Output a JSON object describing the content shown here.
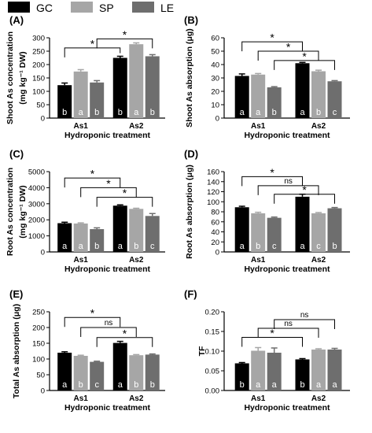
{
  "legend": {
    "items": [
      {
        "label": "GC",
        "color": "#000000"
      },
      {
        "label": "SP",
        "color": "#a6a6a6"
      },
      {
        "label": "LE",
        "color": "#6e6e6e"
      }
    ],
    "placement": "top"
  },
  "chart_data": [
    {
      "type": "bar",
      "panel_label": "(A)",
      "ylabel_lines": [
        "Shoot As concentration",
        "(mg kg⁻¹ DW)"
      ],
      "xlabel": "Hydroponic treatment",
      "categories": [
        "As1",
        "As2"
      ],
      "yticks": [
        0,
        50,
        100,
        150,
        200,
        250,
        300
      ],
      "tick_labels": [
        "0",
        "50",
        "100",
        "150",
        "200",
        "250",
        "300"
      ],
      "ylim": [
        0,
        300
      ],
      "series": [
        {
          "name": "GC",
          "values": [
            123,
            225
          ],
          "errors": [
            8,
            6
          ],
          "letters": [
            "b",
            "b"
          ]
        },
        {
          "name": "SP",
          "values": [
            174,
            276
          ],
          "errors": [
            7,
            5
          ],
          "letters": [
            "a",
            "a"
          ]
        },
        {
          "name": "LE",
          "values": [
            133,
            231
          ],
          "errors": [
            7,
            6
          ],
          "letters": [
            "b",
            "b"
          ]
        }
      ],
      "comparisons": [
        {
          "from_series": 0,
          "y": 262,
          "label": "*"
        },
        {
          "from_series": 2,
          "y": 296,
          "label": "*"
        }
      ]
    },
    {
      "type": "bar",
      "panel_label": "(B)",
      "ylabel_lines": [
        "Shoot As absorption (μg)"
      ],
      "xlabel": "Hydroponic treatment",
      "categories": [
        "As1",
        "As2"
      ],
      "yticks": [
        0,
        10,
        20,
        30,
        40,
        50,
        60
      ],
      "tick_labels": [
        "0",
        "10",
        "20",
        "30",
        "40",
        "50",
        "60"
      ],
      "ylim": [
        0,
        60
      ],
      "series": [
        {
          "name": "GC",
          "values": [
            31.5,
            41
          ],
          "errors": [
            1.5,
            0.6
          ],
          "letters": [
            "a",
            "a"
          ]
        },
        {
          "name": "SP",
          "values": [
            32.5,
            35
          ],
          "errors": [
            0.8,
            0.8
          ],
          "letters": [
            "a",
            "b"
          ]
        },
        {
          "name": "LE",
          "values": [
            23,
            27.5
          ],
          "errors": [
            0.5,
            0.5
          ],
          "letters": [
            "b",
            "c"
          ]
        }
      ],
      "comparisons": [
        {
          "from_series": 0,
          "y": 57,
          "label": "*"
        },
        {
          "from_series": 1,
          "y": 50,
          "label": "*"
        },
        {
          "from_series": 2,
          "y": 43,
          "label": "*"
        }
      ]
    },
    {
      "type": "bar",
      "panel_label": "(C)",
      "ylabel_lines": [
        "Root As concentration",
        "(mg kg⁻¹ DW)"
      ],
      "xlabel": "Hydroponic treatment",
      "categories": [
        "As1",
        "As2"
      ],
      "yticks": [
        0,
        1000,
        2000,
        3000,
        4000,
        5000
      ],
      "tick_labels": [
        "0",
        "1000",
        "2000",
        "3000",
        "4000",
        "5000"
      ],
      "ylim": [
        0,
        5000
      ],
      "series": [
        {
          "name": "GC",
          "values": [
            1790,
            2880
          ],
          "errors": [
            60,
            50
          ],
          "letters": [
            "a",
            "a"
          ]
        },
        {
          "name": "SP",
          "values": [
            1770,
            2680
          ],
          "errors": [
            40,
            40
          ],
          "letters": [
            "a",
            "b"
          ]
        },
        {
          "name": "LE",
          "values": [
            1420,
            2240
          ],
          "errors": [
            80,
            150
          ],
          "letters": [
            "b",
            "c"
          ]
        }
      ],
      "comparisons": [
        {
          "from_series": 0,
          "y": 4600,
          "label": "*"
        },
        {
          "from_series": 1,
          "y": 4000,
          "label": "*"
        },
        {
          "from_series": 2,
          "y": 3400,
          "label": "*"
        }
      ]
    },
    {
      "type": "bar",
      "panel_label": "(D)",
      "ylabel_lines": [
        "Root As absorption (μg)"
      ],
      "xlabel": "Hydroponic treatment",
      "categories": [
        "As1",
        "As2"
      ],
      "yticks": [
        0,
        20,
        40,
        60,
        80,
        100,
        120,
        140,
        160
      ],
      "tick_labels": [
        "0",
        "20",
        "40",
        "60",
        "80",
        "100",
        "120",
        "140",
        "160"
      ],
      "ylim": [
        0,
        160
      ],
      "series": [
        {
          "name": "GC",
          "values": [
            89,
            110
          ],
          "errors": [
            2,
            5
          ],
          "letters": [
            "a",
            "a"
          ]
        },
        {
          "name": "SP",
          "values": [
            77,
            77
          ],
          "errors": [
            2,
            1.5
          ],
          "letters": [
            "b",
            "c"
          ]
        },
        {
          "name": "LE",
          "values": [
            68,
            87
          ],
          "errors": [
            1.5,
            1.5
          ],
          "letters": [
            "c",
            "b"
          ]
        }
      ],
      "comparisons": [
        {
          "from_series": 0,
          "y": 150,
          "label": "*"
        },
        {
          "from_series": 1,
          "y": 132,
          "label": "ns"
        },
        {
          "from_series": 2,
          "y": 115,
          "label": "*"
        }
      ]
    },
    {
      "type": "bar",
      "panel_label": "(E)",
      "ylabel_lines": [
        "Total As absorption (μg)"
      ],
      "xlabel": "Hydroponic treatment",
      "categories": [
        "As1",
        "As2"
      ],
      "yticks": [
        0,
        50,
        100,
        150,
        200,
        250
      ],
      "tick_labels": [
        "0",
        "50",
        "100",
        "150",
        "200",
        "250"
      ],
      "ylim": [
        0,
        250
      ],
      "series": [
        {
          "name": "GC",
          "values": [
            120,
            151
          ],
          "errors": [
            3,
            5
          ],
          "letters": [
            "a",
            "a"
          ]
        },
        {
          "name": "SP",
          "values": [
            110,
            112
          ],
          "errors": [
            2,
            2
          ],
          "letters": [
            "b",
            "b"
          ]
        },
        {
          "name": "LE",
          "values": [
            91,
            114
          ],
          "errors": [
            2,
            2
          ],
          "letters": [
            "c",
            "b"
          ]
        }
      ],
      "comparisons": [
        {
          "from_series": 0,
          "y": 232,
          "label": "*"
        },
        {
          "from_series": 1,
          "y": 200,
          "label": "ns"
        },
        {
          "from_series": 2,
          "y": 168,
          "label": "*"
        }
      ]
    },
    {
      "type": "bar",
      "panel_label": "(F)",
      "ylabel_lines": [
        "TF"
      ],
      "xlabel": "Hydroponic treatment",
      "categories": [
        "As1",
        "As2"
      ],
      "yticks": [
        0,
        0.05,
        0.1,
        0.15,
        0.2
      ],
      "tick_labels": [
        "0.00",
        "0.05",
        "0.10",
        "0.15",
        "0.20"
      ],
      "ylim": [
        0,
        0.2
      ],
      "series": [
        {
          "name": "GC",
          "values": [
            0.069,
            0.079
          ],
          "errors": [
            0.002,
            0.002
          ],
          "letters": [
            "b",
            "b"
          ]
        },
        {
          "name": "SP",
          "values": [
            0.101,
            0.104
          ],
          "errors": [
            0.008,
            0.002
          ],
          "letters": [
            "a",
            "a"
          ]
        },
        {
          "name": "LE",
          "values": [
            0.096,
            0.104
          ],
          "errors": [
            0.012,
            0.003
          ],
          "letters": [
            "a",
            "a"
          ]
        }
      ],
      "comparisons": [
        {
          "from_series": 0,
          "y": 0.135,
          "label": "*"
        },
        {
          "from_series": 1,
          "y": 0.158,
          "label": "ns"
        },
        {
          "from_series": 2,
          "y": 0.18,
          "label": "ns"
        }
      ]
    }
  ]
}
